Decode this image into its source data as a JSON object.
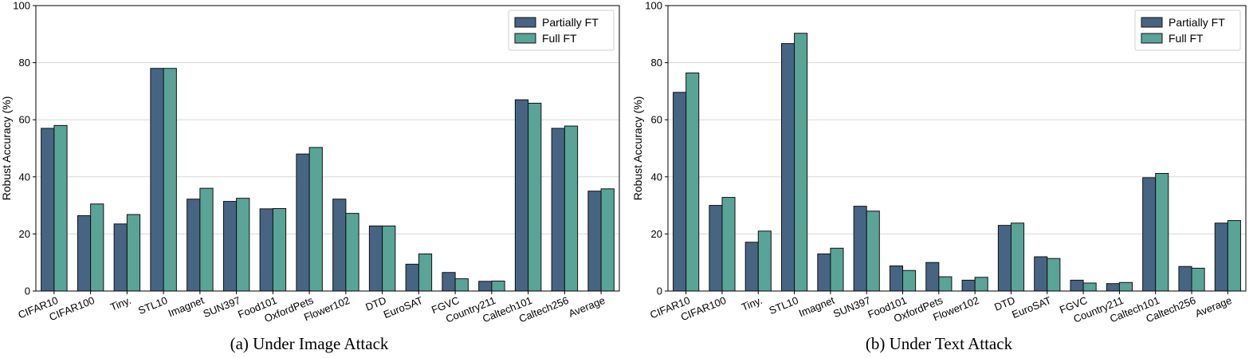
{
  "chart_data": [
    {
      "type": "bar",
      "caption": "(a) Under Image Attack",
      "ylabel": "Robust Accuracy (%)",
      "ylim": [
        0,
        100
      ],
      "yticks": [
        0,
        20,
        40,
        60,
        80,
        100
      ],
      "grid": "horizontal",
      "legend_position": "top-right",
      "categories": [
        "CIFAR10",
        "CIFAR100",
        "Tiny.",
        "STL10",
        "Imagnet",
        "SUN397",
        "Food101",
        "OxfordPets",
        "Flower102",
        "DTD",
        "EuroSAT",
        "FGVC",
        "Country211",
        "Caltech101",
        "Caltech256",
        "Average"
      ],
      "series": [
        {
          "name": "Partially FT",
          "color": "#476583",
          "values": [
            57.0,
            26.4,
            23.5,
            78.0,
            32.2,
            31.4,
            28.8,
            48.0,
            32.2,
            22.8,
            9.4,
            6.5,
            3.4,
            67.0,
            57.0,
            35.0
          ]
        },
        {
          "name": "Full FT",
          "color": "#5aa397",
          "values": [
            58.0,
            30.5,
            26.8,
            78.0,
            36.0,
            32.5,
            28.9,
            50.3,
            27.2,
            22.8,
            13.0,
            4.3,
            3.5,
            65.8,
            57.8,
            35.8
          ]
        }
      ]
    },
    {
      "type": "bar",
      "caption": "(b) Under Text Attack",
      "ylabel": "Robust Accuracy (%)",
      "ylim": [
        0,
        100
      ],
      "yticks": [
        0,
        20,
        40,
        60,
        80,
        100
      ],
      "grid": "horizontal",
      "legend_position": "top-right",
      "categories": [
        "CIFAR10",
        "CIFAR100",
        "Tiny.",
        "STL10",
        "Imagnet",
        "SUN397",
        "Food101",
        "OxfordPets",
        "Flower102",
        "DTD",
        "EuroSAT",
        "FGVC",
        "Country211",
        "Caltech101",
        "Caltech256",
        "Average"
      ],
      "series": [
        {
          "name": "Partially FT",
          "color": "#476583",
          "values": [
            69.6,
            30.0,
            17.1,
            86.7,
            13.0,
            29.7,
            8.8,
            10.0,
            3.8,
            23.0,
            12.0,
            3.8,
            2.6,
            39.7,
            8.6,
            23.8
          ]
        },
        {
          "name": "Full FT",
          "color": "#5aa397",
          "values": [
            76.4,
            32.8,
            21.0,
            90.3,
            15.0,
            28.0,
            7.2,
            5.0,
            4.8,
            23.8,
            11.4,
            2.8,
            3.0,
            41.2,
            8.0,
            24.7
          ]
        }
      ]
    }
  ]
}
